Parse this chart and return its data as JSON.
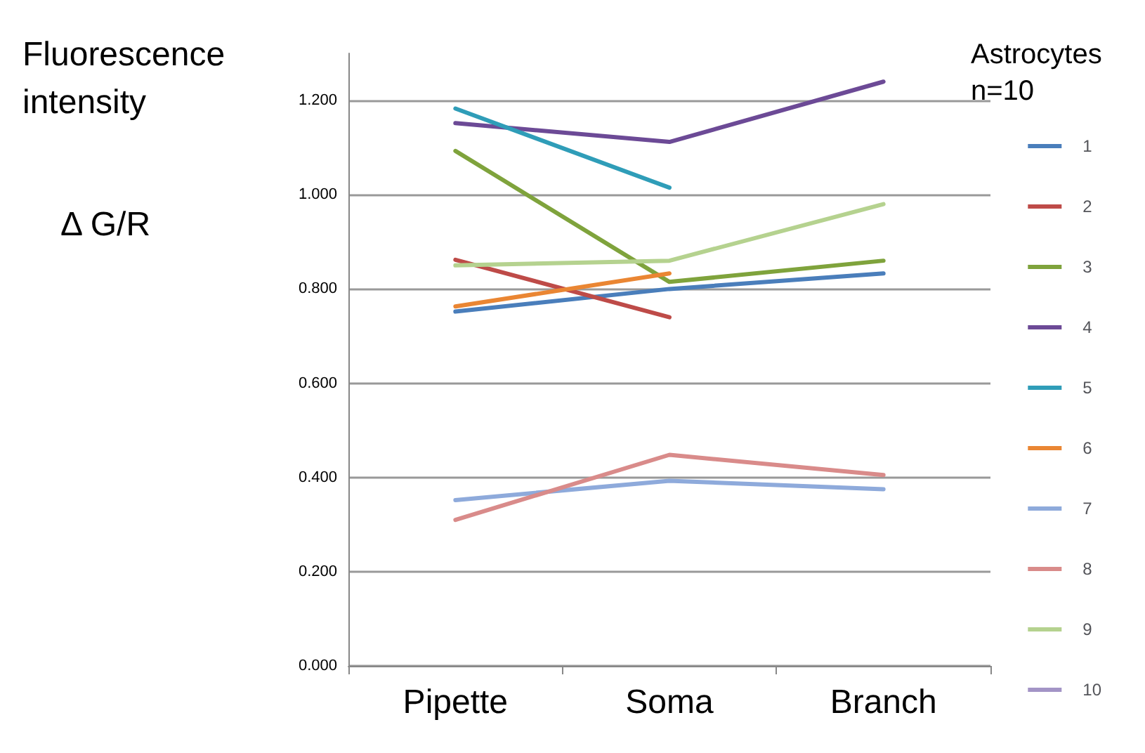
{
  "chart_data": {
    "type": "line",
    "ylabel": "Fluorescence intensity",
    "annotations": [
      "Δ G/R"
    ],
    "legend_title": "Astrocytes n=10",
    "categories": [
      "Pipette",
      "Soma",
      "Branch"
    ],
    "series": [
      {
        "name": "1",
        "color": "#4a7ebb",
        "values": [
          0.752,
          0.8,
          0.833
        ]
      },
      {
        "name": "2",
        "color": "#be4b48",
        "values": [
          0.862,
          0.74,
          null
        ]
      },
      {
        "name": "3",
        "color": "#7fa33c",
        "values": [
          1.093,
          0.815,
          0.86
        ]
      },
      {
        "name": "4",
        "color": "#6c4a96",
        "values": [
          1.152,
          1.112,
          1.24
        ]
      },
      {
        "name": "5",
        "color": "#2f9db8",
        "values": [
          1.183,
          1.015,
          null
        ]
      },
      {
        "name": "6",
        "color": "#ea8633",
        "values": [
          0.763,
          0.833,
          null
        ]
      },
      {
        "name": "7",
        "color": "#8eaadb",
        "values": [
          0.352,
          0.393,
          0.375
        ]
      },
      {
        "name": "8",
        "color": "#d98b8a",
        "values": [
          0.31,
          0.448,
          0.405
        ]
      },
      {
        "name": "9",
        "color": "#b5d28f",
        "values": [
          0.85,
          0.86,
          0.98
        ]
      },
      {
        "name": "10",
        "color": "#a394c6",
        "values": [
          null,
          null,
          null
        ]
      }
    ],
    "ylim": [
      0,
      1.3
    ],
    "yticks": [
      {
        "value": 0,
        "label": "0.000"
      },
      {
        "value": 0.2,
        "label": "0.200"
      },
      {
        "value": 0.4,
        "label": "0.400"
      },
      {
        "value": 0.6,
        "label": "0.600"
      },
      {
        "value": 0.8,
        "label": "0.800"
      },
      {
        "value": 1,
        "label": "1.000"
      },
      {
        "value": 1.2,
        "label": "1.200"
      }
    ],
    "grid": "y",
    "legend": "right",
    "marker": "none",
    "line_style": "solid"
  }
}
